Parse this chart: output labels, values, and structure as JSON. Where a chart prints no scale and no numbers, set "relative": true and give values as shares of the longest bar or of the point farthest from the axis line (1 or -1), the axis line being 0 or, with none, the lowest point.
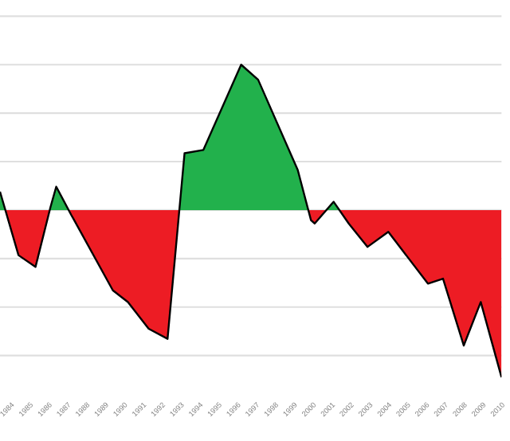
{
  "chart_data": {
    "type": "area",
    "relative": true,
    "x": [
      1983.42,
      1984.4,
      1985.3,
      1986.1,
      1986.4,
      1987.2,
      1987.3,
      1989.4,
      1990.2,
      1991.3,
      1992.3,
      1993.2,
      1994.2,
      1996.2,
      1997.1,
      1999.2,
      1999.9,
      2000.1,
      2001.1,
      2001.9,
      2002.9,
      2004.0,
      2006.1,
      2006.9,
      2008.0,
      2008.9,
      2010.0
    ],
    "values": [
      0.11,
      -0.27,
      -0.34,
      0.02,
      0.14,
      -0.03,
      -0.05,
      -0.48,
      -0.55,
      -0.71,
      -0.77,
      0.34,
      0.36,
      0.87,
      0.78,
      0.24,
      -0.06,
      -0.08,
      0.05,
      -0.08,
      -0.22,
      -0.13,
      -0.44,
      -0.41,
      -0.81,
      -0.55,
      -1
    ],
    "xlim": [
      1983.42,
      2010.0
    ],
    "xticks": [
      1984,
      1985,
      1986,
      1987,
      1988,
      1989,
      1990,
      1991,
      1992,
      1993,
      1994,
      1995,
      1996,
      1997,
      1998,
      1999,
      2000,
      2001,
      2002,
      2003,
      2004,
      2005,
      2006,
      2007,
      2008,
      2009,
      2010
    ],
    "grid": "y"
  }
}
